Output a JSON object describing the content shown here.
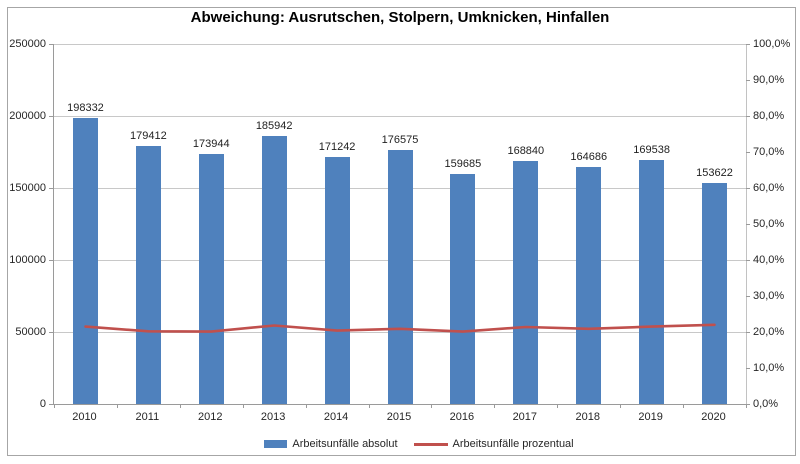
{
  "chart": {
    "title": "Abweichung: Ausrutschen, Stolpern, Umknicken, Hinfallen",
    "colors": {
      "bar": "#4F81BD",
      "line": "#C0504D",
      "gridline": "#c8c8c8",
      "axis": "#9a9a9a"
    }
  },
  "chart_data": {
    "type": "bar",
    "title": "Abweichung: Ausrutschen, Stolpern, Umknicken, Hinfallen",
    "categories": [
      "2010",
      "2011",
      "2012",
      "2013",
      "2014",
      "2015",
      "2016",
      "2017",
      "2018",
      "2019",
      "2020"
    ],
    "series": [
      {
        "name": "Arbeitsunfälle absolut",
        "type": "bar",
        "axis": "left",
        "color": "#4F81BD",
        "values": [
          198332,
          179412,
          173944,
          185942,
          171242,
          176575,
          159685,
          168840,
          164686,
          169538,
          153622
        ],
        "data_labels": [
          "198332",
          "179412",
          "173944",
          "185942",
          "171242",
          "176575",
          "159685",
          "168840",
          "164686",
          "169538",
          "153622"
        ]
      },
      {
        "name": "Arbeitsunfälle prozentual",
        "type": "line",
        "axis": "right",
        "color": "#C0504D",
        "values": [
          21.5,
          20.2,
          20.1,
          21.8,
          20.4,
          20.9,
          20.1,
          21.4,
          20.9,
          21.5,
          22.0
        ]
      }
    ],
    "left_axis": {
      "min": 0,
      "max": 250000,
      "step": 50000,
      "tick_labels": [
        "0",
        "50000",
        "100000",
        "150000",
        "200000",
        "250000"
      ]
    },
    "right_axis": {
      "min": 0,
      "max": 100,
      "step": 10,
      "tick_labels": [
        "0,0%",
        "10,0%",
        "20,0%",
        "30,0%",
        "40,0%",
        "50,0%",
        "60,0%",
        "70,0%",
        "80,0%",
        "90,0%",
        "100,0%"
      ]
    },
    "grid": "horizontal-only",
    "legend_position": "bottom",
    "data_labels": true
  }
}
